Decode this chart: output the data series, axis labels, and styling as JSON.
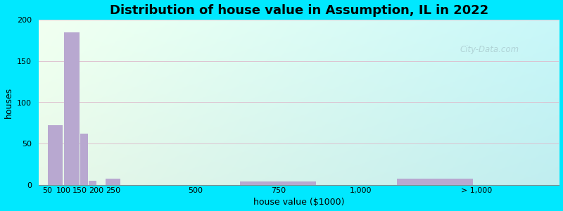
{
  "title": "Distribution of house value in Assumption, IL in 2022",
  "xlabel": "house value ($1000)",
  "ylabel": "houses",
  "bar_color": "#b8a8d0",
  "background_outer": "#00e8ff",
  "ylim": [
    0,
    200
  ],
  "yticks": [
    0,
    50,
    100,
    150,
    200
  ],
  "tick_labels": [
    "50",
    "100",
    "150",
    "200",
    "250",
    "500",
    "750",
    "1,000",
    "> 1,000"
  ],
  "values": [
    72,
    185,
    62,
    5,
    8,
    0,
    4,
    0,
    8
  ],
  "bar_lefts": [
    50,
    100,
    150,
    175,
    225,
    375,
    625,
    875,
    1100
  ],
  "bar_widths": [
    50,
    50,
    25,
    25,
    50,
    125,
    250,
    125,
    250
  ],
  "tick_positions": [
    50,
    100,
    150,
    200,
    250,
    500,
    750,
    1000,
    1350
  ],
  "xlim": [
    25,
    1600
  ],
  "title_fontsize": 13,
  "axis_fontsize": 9,
  "tick_fontsize": 8,
  "watermark": "City-Data.com"
}
